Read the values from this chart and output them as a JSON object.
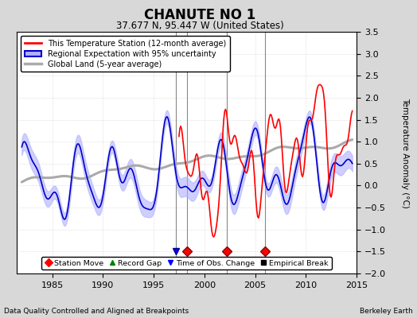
{
  "title": "CHANUTE NO 1",
  "subtitle": "37.677 N, 95.447 W (United States)",
  "ylabel": "Temperature Anomaly (°C)",
  "xlabel_left": "Data Quality Controlled and Aligned at Breakpoints",
  "xlabel_right": "Berkeley Earth",
  "xlim": [
    1981.5,
    2015.0
  ],
  "ylim": [
    -2.0,
    3.5
  ],
  "yticks": [
    -2,
    -1.5,
    -1,
    -0.5,
    0,
    0.5,
    1,
    1.5,
    2,
    2.5,
    3,
    3.5
  ],
  "xticks": [
    1985,
    1990,
    1995,
    2000,
    2005,
    2010,
    2015
  ],
  "background_color": "#d8d8d8",
  "plot_bg_color": "#ffffff",
  "grid_color": "#cccccc",
  "station_move_times": [
    1998.3,
    2002.2,
    2006.0
  ],
  "station_move_y": -1.5,
  "obs_change_times": [
    1997.2
  ],
  "obs_change_y": -1.5,
  "vertical_lines": [
    1997.2,
    1998.3,
    2002.2,
    2006.0
  ],
  "red_start_year": 1997.5,
  "blue_end_year": 2014.5,
  "reg_band_color": "#b0b0ff",
  "reg_band_alpha": 0.6,
  "reg_line_color": "#0000cc",
  "station_color": "#ff0000",
  "global_color": "#aaaaaa",
  "vline_color": "#888888",
  "vline_lw": 0.8
}
